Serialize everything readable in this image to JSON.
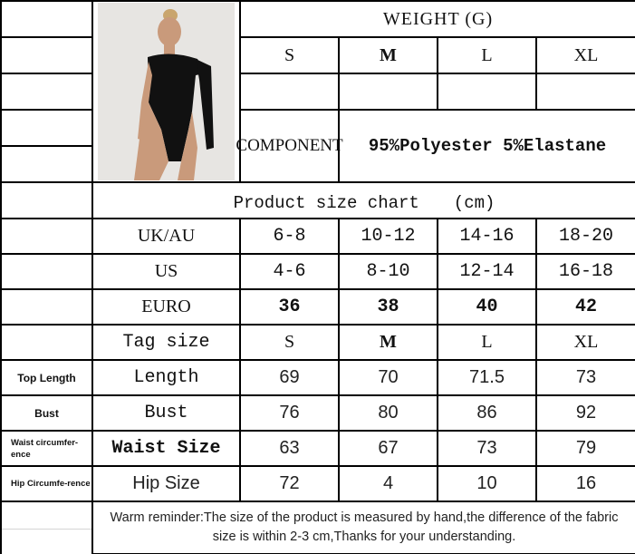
{
  "header": {
    "weight_title": "WEIGHT (G)",
    "sizes": [
      "S",
      "M",
      "L",
      "XL"
    ],
    "weights": [
      "",
      "",
      "",
      ""
    ],
    "component_label": "COMPONENT",
    "component_value": "95%Polyester 5%Elastane"
  },
  "product_image": {
    "alt": "Model wearing black one-shoulder bodysuit",
    "garment_color": "#111111"
  },
  "chart_title": "Product size chart　　(cm)",
  "rows": [
    {
      "side": "",
      "label": "UK/AU",
      "values": [
        "6-8",
        "10-12",
        "14-16",
        "18-20"
      ]
    },
    {
      "side": "",
      "label": "US",
      "values": [
        "4-6",
        "8-10",
        "12-14",
        "16-18"
      ]
    },
    {
      "side": "",
      "label": "EURO",
      "values": [
        "36",
        "38",
        "40",
        "42"
      ]
    },
    {
      "side": "",
      "label": "Tag size",
      "values": [
        "S",
        "M",
        "L",
        "XL"
      ]
    },
    {
      "side": "Top Length",
      "label": "Length",
      "values": [
        "69",
        "70",
        "71.5",
        "73"
      ]
    },
    {
      "side": "Bust",
      "label": "Bust",
      "values": [
        "76",
        "80",
        "86",
        "92"
      ]
    },
    {
      "side": "Waist circumfer-ence",
      "label": "Waist Size",
      "values": [
        "63",
        "67",
        "73",
        "79"
      ]
    },
    {
      "side": "Hip Circumfe-rence",
      "label": "Hip Size",
      "values": [
        "72",
        "4",
        "10",
        "16"
      ]
    }
  ],
  "reminder": "Warm reminder:The size of the product is measured by hand,the difference of the fabric size is within 2-3 cm,Thanks for your understanding."
}
